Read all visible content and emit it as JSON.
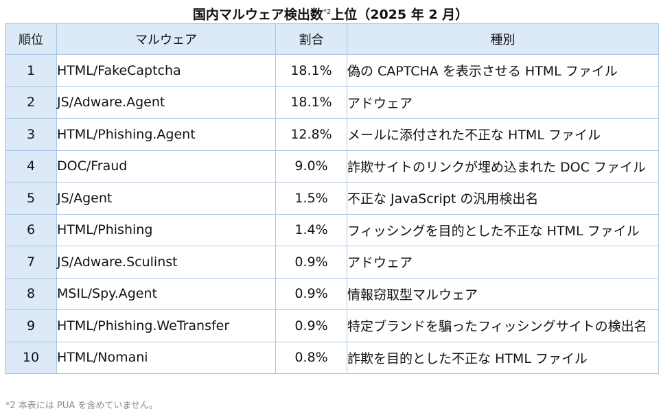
{
  "title": {
    "main": "国内マルウェア検出数",
    "sup": "*2",
    "suffix": "上位（2025 年 2 月）"
  },
  "table": {
    "headers": [
      "順位",
      "マルウェア",
      "割合",
      "種別"
    ],
    "rows": [
      {
        "rank": "1",
        "name": "HTML/FakeCaptcha",
        "ratio": "18.1%",
        "kind": "偽の CAPTCHA を表示させる HTML ファイル"
      },
      {
        "rank": "2",
        "name": "JS/Adware.Agent",
        "ratio": "18.1%",
        "kind": "アドウェア"
      },
      {
        "rank": "3",
        "name": "HTML/Phishing.Agent",
        "ratio": "12.8%",
        "kind": "メールに添付された不正な HTML ファイル"
      },
      {
        "rank": "4",
        "name": "DOC/Fraud",
        "ratio": "9.0%",
        "kind": "詐欺サイトのリンクが埋め込まれた DOC ファイル"
      },
      {
        "rank": "5",
        "name": "JS/Agent",
        "ratio": "1.5%",
        "kind": "不正な JavaScript の汎用検出名"
      },
      {
        "rank": "6",
        "name": "HTML/Phishing",
        "ratio": "1.4%",
        "kind": "フィッシングを目的とした不正な HTML ファイル"
      },
      {
        "rank": "7",
        "name": "JS/Adware.Sculinst",
        "ratio": "0.9%",
        "kind": "アドウェア"
      },
      {
        "rank": "8",
        "name": "MSIL/Spy.Agent",
        "ratio": "0.9%",
        "kind": "情報窃取型マルウェア"
      },
      {
        "rank": "9",
        "name": "HTML/Phishing.WeTransfer",
        "ratio": "0.9%",
        "kind": "特定ブランドを騙ったフィッシングサイトの検出名"
      },
      {
        "rank": "10",
        "name": "HTML/Nomani",
        "ratio": "0.8%",
        "kind": "詐欺を目的とした不正な HTML ファイル"
      }
    ]
  },
  "footnote": "*2 本表には PUA を含めていません。",
  "colors": {
    "header_bg": "#dce9f7",
    "border": "#a9c6e3",
    "footnote": "#8c8c8c"
  }
}
